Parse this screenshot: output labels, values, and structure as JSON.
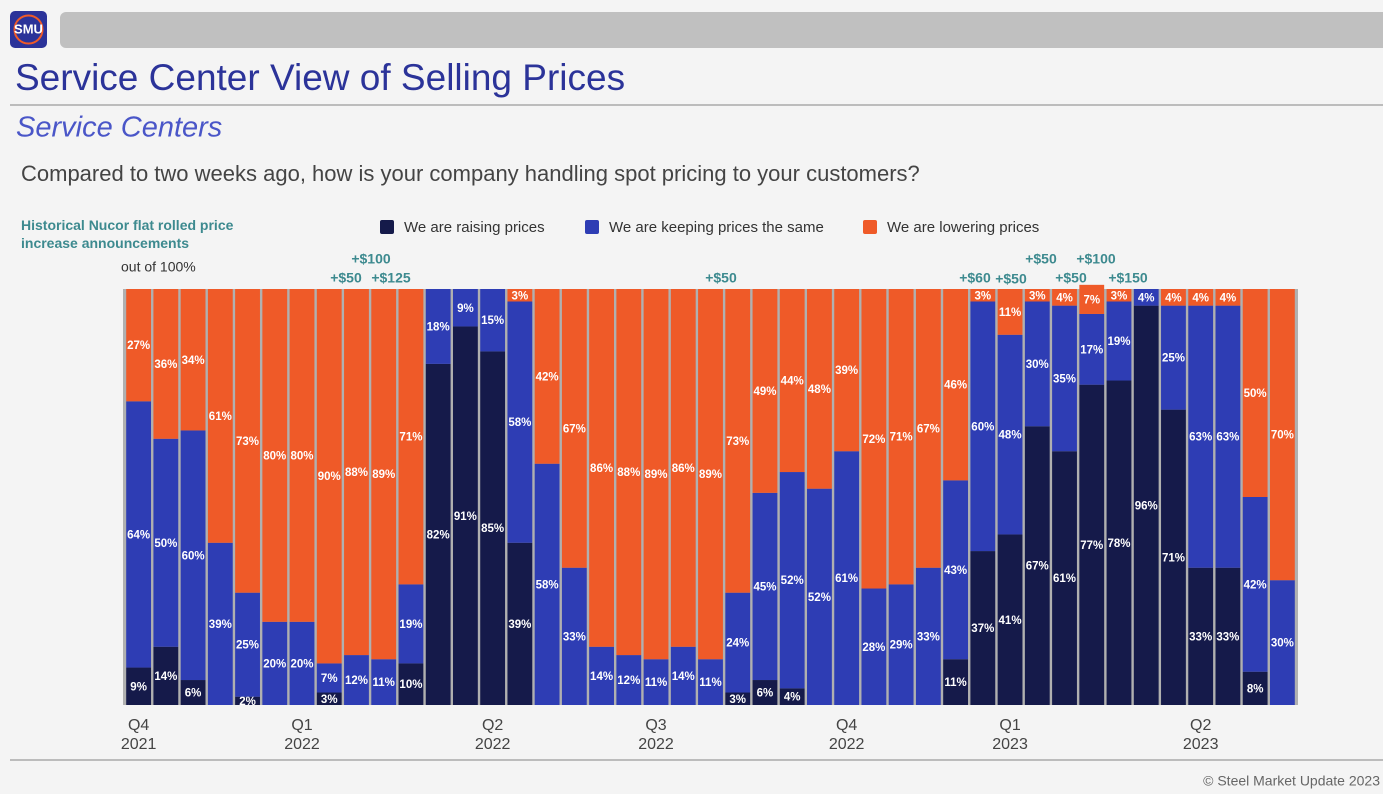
{
  "header": {
    "logo": "SMU",
    "title": "Service Center View of Selling Prices",
    "subtitle": "Service Centers",
    "question": "Compared to two weeks ago, how is your company handling spot pricing to your customers?",
    "note": "Historical Nucor flat rolled price increase announcements",
    "footer": "© Steel Market Update 2023"
  },
  "chart_data": {
    "type": "bar",
    "stacked": true,
    "ylabel": "out of 100%",
    "ylim": [
      0,
      100
    ],
    "categories": [
      "Q4\n2021",
      null,
      null,
      null,
      null,
      null,
      "Q1\n2022",
      null,
      null,
      null,
      null,
      null,
      null,
      "Q2\n2022",
      null,
      null,
      null,
      null,
      null,
      "Q3\n2022",
      null,
      null,
      null,
      null,
      null,
      null,
      "Q4\n2022",
      null,
      null,
      null,
      null,
      null,
      "Q1\n2023",
      null,
      null,
      null,
      null,
      null,
      null,
      "Q2\n2023",
      null,
      null,
      null
    ],
    "series": [
      {
        "name": "We are raising prices",
        "color": "#151a4a",
        "values": [
          9,
          14,
          6,
          0,
          2,
          0,
          0,
          3,
          0,
          0,
          10,
          82,
          91,
          85,
          39,
          0,
          0,
          0,
          0,
          0,
          0,
          0,
          3,
          6,
          4,
          0,
          0,
          0,
          0,
          0,
          11,
          37,
          41,
          67,
          61,
          77,
          78,
          96,
          71,
          33,
          33,
          8,
          0
        ],
        "value_labels": [
          "9%",
          "14%",
          "6%",
          null,
          "2%",
          null,
          null,
          "3%",
          null,
          null,
          "10%",
          "82%",
          "91%",
          "85%",
          "39%",
          null,
          null,
          null,
          null,
          null,
          null,
          null,
          "3%",
          "6%",
          "4%",
          null,
          null,
          null,
          null,
          null,
          "11%",
          "37%",
          "41%",
          "67%",
          "61%",
          "77%",
          "78%",
          "96%",
          "71%",
          "33%",
          "33%",
          "8%",
          null
        ]
      },
      {
        "name": "We are keeping prices the same",
        "color": "#2e3db4",
        "values": [
          64,
          50,
          60,
          39,
          25,
          20,
          20,
          7,
          12,
          11,
          19,
          18,
          9,
          15,
          58,
          58,
          33,
          14,
          12,
          11,
          14,
          11,
          24,
          45,
          52,
          52,
          61,
          28,
          29,
          33,
          43,
          60,
          48,
          30,
          35,
          17,
          19,
          4,
          25,
          63,
          63,
          42,
          30
        ],
        "value_labels": [
          "64%",
          "50%",
          "60%",
          "39%",
          "25%",
          "20%",
          "20%",
          "7%",
          "12%",
          "11%",
          "19%",
          "18%",
          "9%",
          "15%",
          "58%",
          "58%",
          "33%",
          "14%",
          "12%",
          "11%",
          "14%",
          "11%",
          "24%",
          "45%",
          "52%",
          "52%",
          "61%",
          "28%",
          "29%",
          "33%",
          "43%",
          "60%",
          "48%",
          "30%",
          "35%",
          "17%",
          "19%",
          "4%",
          "25%",
          "63%",
          "63%",
          "42%",
          "30%"
        ]
      },
      {
        "name": "We are lowering prices",
        "color": "#ef5a28",
        "values": [
          27,
          36,
          34,
          61,
          73,
          80,
          80,
          90,
          88,
          89,
          71,
          0,
          0,
          0,
          3,
          42,
          67,
          86,
          88,
          89,
          86,
          89,
          73,
          49,
          44,
          48,
          39,
          72,
          71,
          67,
          46,
          3,
          11,
          3,
          4,
          7,
          3,
          0,
          4,
          4,
          4,
          50,
          70
        ],
        "value_labels": [
          "27%",
          "36%",
          "34%",
          "61%",
          "73%",
          "80%",
          "80%",
          "90%",
          "88%",
          "89%",
          "71%",
          null,
          null,
          null,
          "3%",
          "42%",
          "67%",
          "86%",
          "88%",
          "89%",
          "86%",
          "89%",
          "73%",
          "49%",
          "44%",
          "48%",
          "39%",
          "72%",
          "71%",
          "67%",
          "46%",
          "3%",
          "11%",
          "3%",
          "4%",
          "7%",
          "3%",
          null,
          "4%",
          "4%",
          "4%",
          "50%",
          "70%"
        ]
      }
    ],
    "annotations": [
      "+$50",
      "+$100",
      "+$125",
      "+$50",
      "+$60",
      "+$50",
      "+$50",
      "+$50",
      "+$100",
      "+$150"
    ]
  }
}
